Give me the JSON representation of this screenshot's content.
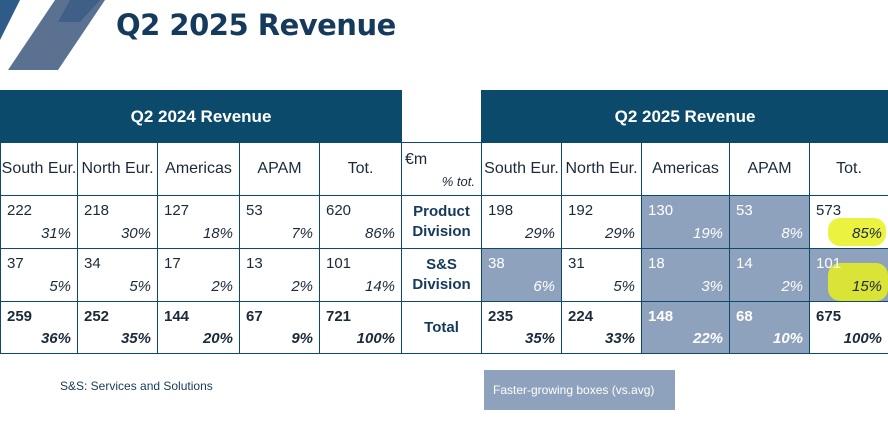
{
  "title": "Q2 2025 Revenue",
  "colors": {
    "header_bg": "#0b4a6a",
    "highlight_box": "#8ea2bd",
    "marker": "#e8f01e",
    "title": "#153a5b"
  },
  "table": {
    "left_group": "Q2 2024 Revenue",
    "right_group": "Q2 2025 Revenue",
    "columns": [
      "South Eur.",
      "North Eur.",
      "Americas",
      "APAM",
      "Tot."
    ],
    "unit_label": "€m",
    "pct_label": "% tot.",
    "rows": [
      {
        "label": "Product Division",
        "q2_2024": [
          {
            "v": "222",
            "p": "31%"
          },
          {
            "v": "218",
            "p": "30%"
          },
          {
            "v": "127",
            "p": "18%"
          },
          {
            "v": "53",
            "p": "7%"
          },
          {
            "v": "620",
            "p": "86%"
          }
        ],
        "q2_2025": [
          {
            "v": "198",
            "p": "29%"
          },
          {
            "v": "192",
            "p": "29%"
          },
          {
            "v": "130",
            "p": "19%"
          },
          {
            "v": "53",
            "p": "8%"
          },
          {
            "v": "573",
            "p": "85%"
          }
        ]
      },
      {
        "label": "S&S Division",
        "q2_2024": [
          {
            "v": "37",
            "p": "5%"
          },
          {
            "v": "34",
            "p": "5%"
          },
          {
            "v": "17",
            "p": "2%"
          },
          {
            "v": "13",
            "p": "2%"
          },
          {
            "v": "101",
            "p": "14%"
          }
        ],
        "q2_2025": [
          {
            "v": "38",
            "p": "6%"
          },
          {
            "v": "31",
            "p": "5%"
          },
          {
            "v": "18",
            "p": "3%"
          },
          {
            "v": "14",
            "p": "2%"
          },
          {
            "v": "101",
            "p": "15%"
          }
        ]
      },
      {
        "label": "Total",
        "q2_2024": [
          {
            "v": "259",
            "p": "36%"
          },
          {
            "v": "252",
            "p": "35%"
          },
          {
            "v": "144",
            "p": "20%"
          },
          {
            "v": "67",
            "p": "9%"
          },
          {
            "v": "721",
            "p": "100%"
          }
        ],
        "q2_2025": [
          {
            "v": "235",
            "p": "35%"
          },
          {
            "v": "224",
            "p": "33%"
          },
          {
            "v": "148",
            "p": "22%"
          },
          {
            "v": "68",
            "p": "10%"
          },
          {
            "v": "675",
            "p": "100%"
          }
        ]
      }
    ]
  },
  "footnote": "S&S: Services and Solutions",
  "legend": "Faster-growing boxes (vs.avg)"
}
